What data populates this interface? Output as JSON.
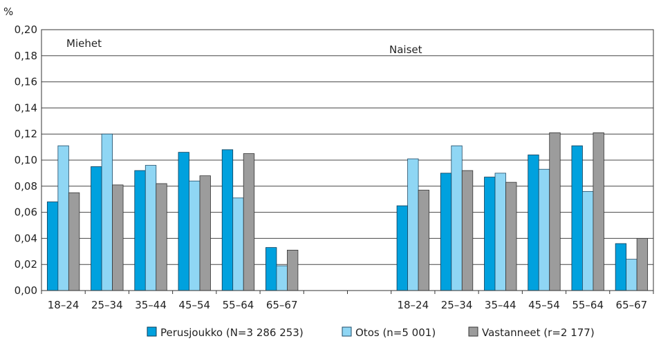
{
  "chart_data": {
    "type": "bar",
    "ylabel": "%",
    "ylim": [
      0,
      0.2
    ],
    "yticks": [
      "0,00",
      "0,02",
      "0,04",
      "0,06",
      "0,08",
      "0,10",
      "0,12",
      "0,14",
      "0,16",
      "0,18",
      "0,20"
    ],
    "grid": true,
    "legend_position": "bottom",
    "groups": [
      {
        "label": "Miehet",
        "categories": [
          "18–24",
          "25–34",
          "35–44",
          "45–54",
          "55–64",
          "65–67"
        ],
        "series": [
          {
            "name": "Perusjoukko (N=3 286 253)",
            "values": [
              0.068,
              0.095,
              0.092,
              0.106,
              0.108,
              0.033
            ]
          },
          {
            "name": "Otos (n=5 001)",
            "values": [
              0.111,
              0.12,
              0.096,
              0.084,
              0.071,
              0.019
            ]
          },
          {
            "name": "Vastanneet (r=2 177)",
            "values": [
              0.075,
              0.081,
              0.082,
              0.088,
              0.105,
              0.031
            ]
          }
        ]
      },
      {
        "label": "Naiset",
        "categories": [
          "18–24",
          "25–34",
          "35–44",
          "45–54",
          "55–64",
          "65–67"
        ],
        "series": [
          {
            "name": "Perusjoukko (N=3 286 253)",
            "values": [
              0.065,
              0.09,
              0.087,
              0.104,
              0.111,
              0.036
            ]
          },
          {
            "name": "Otos (n=5 001)",
            "values": [
              0.101,
              0.111,
              0.09,
              0.093,
              0.076,
              0.024
            ]
          },
          {
            "name": "Vastanneet (r=2 177)",
            "values": [
              0.077,
              0.092,
              0.083,
              0.121,
              0.121,
              0.04
            ]
          }
        ]
      }
    ],
    "colors": [
      "#00a1de",
      "#8fd6f4",
      "#9c9c9c"
    ]
  }
}
